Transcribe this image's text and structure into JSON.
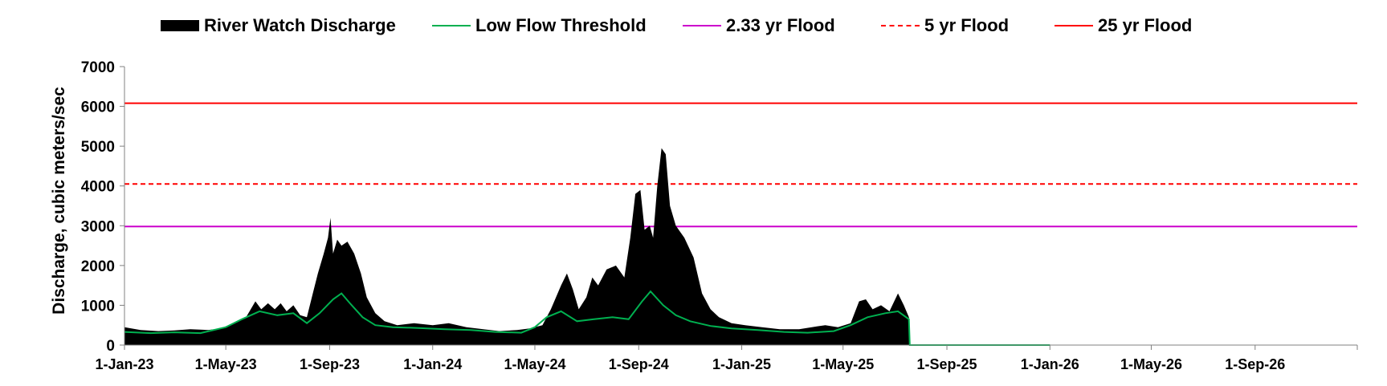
{
  "chart_data": {
    "type": "area",
    "ylabel": "Discharge, cubic meters/sec",
    "xlabel": "",
    "ylim": [
      0,
      7000
    ],
    "yticks": [
      0,
      1000,
      2000,
      3000,
      4000,
      5000,
      6000,
      7000
    ],
    "xlim": [
      "2023-01-01",
      "2026-12-31"
    ],
    "xticks": [
      {
        "date": "2023-01-01",
        "label": "1-Jan-23"
      },
      {
        "date": "2023-05-01",
        "label": "1-May-23"
      },
      {
        "date": "2023-09-01",
        "label": "1-Sep-23"
      },
      {
        "date": "2024-01-01",
        "label": "1-Jan-24"
      },
      {
        "date": "2024-05-01",
        "label": "1-May-24"
      },
      {
        "date": "2024-09-01",
        "label": "1-Sep-24"
      },
      {
        "date": "2025-01-01",
        "label": "1-Jan-25"
      },
      {
        "date": "2025-05-01",
        "label": "1-May-25"
      },
      {
        "date": "2025-09-01",
        "label": "1-Sep-25"
      },
      {
        "date": "2026-01-01",
        "label": "1-Jan-26"
      },
      {
        "date": "2026-05-01",
        "label": "1-May-26"
      },
      {
        "date": "2026-09-01",
        "label": "1-Sep-26"
      }
    ],
    "grid": false,
    "legend": "top",
    "series": [
      {
        "name": "River Watch Discharge",
        "kind": "area",
        "color": "#000000",
        "points": [
          [
            "2023-01-01",
            450
          ],
          [
            "2023-01-20",
            380
          ],
          [
            "2023-02-10",
            350
          ],
          [
            "2023-03-01",
            370
          ],
          [
            "2023-03-20",
            400
          ],
          [
            "2023-04-10",
            380
          ],
          [
            "2023-04-25",
            420
          ],
          [
            "2023-05-10",
            550
          ],
          [
            "2023-05-25",
            700
          ],
          [
            "2023-06-05",
            1100
          ],
          [
            "2023-06-12",
            900
          ],
          [
            "2023-06-20",
            1050
          ],
          [
            "2023-06-28",
            900
          ],
          [
            "2023-07-05",
            1050
          ],
          [
            "2023-07-12",
            850
          ],
          [
            "2023-07-20",
            1000
          ],
          [
            "2023-07-28",
            750
          ],
          [
            "2023-08-05",
            700
          ],
          [
            "2023-08-12",
            1300
          ],
          [
            "2023-08-18",
            1800
          ],
          [
            "2023-08-25",
            2300
          ],
          [
            "2023-08-30",
            2700
          ],
          [
            "2023-09-02",
            3200
          ],
          [
            "2023-09-05",
            2300
          ],
          [
            "2023-09-10",
            2650
          ],
          [
            "2023-09-15",
            2500
          ],
          [
            "2023-09-22",
            2600
          ],
          [
            "2023-09-30",
            2300
          ],
          [
            "2023-10-08",
            1800
          ],
          [
            "2023-10-15",
            1200
          ],
          [
            "2023-10-25",
            800
          ],
          [
            "2023-11-05",
            600
          ],
          [
            "2023-11-20",
            500
          ],
          [
            "2023-12-10",
            550
          ],
          [
            "2024-01-01",
            500
          ],
          [
            "2024-01-20",
            550
          ],
          [
            "2024-02-10",
            450
          ],
          [
            "2024-03-01",
            400
          ],
          [
            "2024-03-20",
            350
          ],
          [
            "2024-04-10",
            380
          ],
          [
            "2024-04-25",
            420
          ],
          [
            "2024-05-10",
            500
          ],
          [
            "2024-05-20",
            900
          ],
          [
            "2024-06-01",
            1500
          ],
          [
            "2024-06-08",
            1800
          ],
          [
            "2024-06-15",
            1400
          ],
          [
            "2024-06-22",
            900
          ],
          [
            "2024-07-01",
            1200
          ],
          [
            "2024-07-08",
            1700
          ],
          [
            "2024-07-15",
            1500
          ],
          [
            "2024-07-25",
            1900
          ],
          [
            "2024-08-05",
            2000
          ],
          [
            "2024-08-15",
            1700
          ],
          [
            "2024-08-22",
            2700
          ],
          [
            "2024-08-28",
            3800
          ],
          [
            "2024-09-03",
            3900
          ],
          [
            "2024-09-08",
            2900
          ],
          [
            "2024-09-14",
            3000
          ],
          [
            "2024-09-18",
            2700
          ],
          [
            "2024-09-23",
            4000
          ],
          [
            "2024-09-28",
            4950
          ],
          [
            "2024-10-03",
            4800
          ],
          [
            "2024-10-08",
            3500
          ],
          [
            "2024-10-15",
            3000
          ],
          [
            "2024-10-25",
            2700
          ],
          [
            "2024-11-05",
            2200
          ],
          [
            "2024-11-15",
            1300
          ],
          [
            "2024-11-25",
            900
          ],
          [
            "2024-12-05",
            700
          ],
          [
            "2024-12-20",
            550
          ],
          [
            "2025-01-05",
            500
          ],
          [
            "2025-01-25",
            450
          ],
          [
            "2025-02-15",
            400
          ],
          [
            "2025-03-10",
            400
          ],
          [
            "2025-03-25",
            450
          ],
          [
            "2025-04-10",
            500
          ],
          [
            "2025-04-25",
            450
          ],
          [
            "2025-05-10",
            550
          ],
          [
            "2025-05-20",
            1100
          ],
          [
            "2025-05-28",
            1150
          ],
          [
            "2025-06-05",
            900
          ],
          [
            "2025-06-15",
            1000
          ],
          [
            "2025-06-25",
            850
          ],
          [
            "2025-07-05",
            1300
          ],
          [
            "2025-07-12",
            1000
          ],
          [
            "2025-07-18",
            700
          ],
          [
            "2025-07-19",
            0
          ]
        ]
      },
      {
        "name": "Low Flow Threshold",
        "kind": "line",
        "color": "#00b050",
        "points": [
          [
            "2023-01-01",
            330
          ],
          [
            "2023-02-01",
            300
          ],
          [
            "2023-03-01",
            320
          ],
          [
            "2023-04-01",
            300
          ],
          [
            "2023-05-01",
            450
          ],
          [
            "2023-05-20",
            650
          ],
          [
            "2023-06-10",
            850
          ],
          [
            "2023-07-01",
            750
          ],
          [
            "2023-07-20",
            800
          ],
          [
            "2023-08-05",
            550
          ],
          [
            "2023-08-20",
            800
          ],
          [
            "2023-09-05",
            1150
          ],
          [
            "2023-09-15",
            1300
          ],
          [
            "2023-09-25",
            1050
          ],
          [
            "2023-10-10",
            700
          ],
          [
            "2023-10-25",
            500
          ],
          [
            "2023-11-15",
            450
          ],
          [
            "2023-12-15",
            430
          ],
          [
            "2024-01-15",
            400
          ],
          [
            "2024-02-15",
            380
          ],
          [
            "2024-03-15",
            330
          ],
          [
            "2024-04-15",
            310
          ],
          [
            "2024-05-01",
            450
          ],
          [
            "2024-05-15",
            700
          ],
          [
            "2024-06-01",
            850
          ],
          [
            "2024-06-20",
            600
          ],
          [
            "2024-07-10",
            650
          ],
          [
            "2024-08-01",
            700
          ],
          [
            "2024-08-20",
            650
          ],
          [
            "2024-09-05",
            1100
          ],
          [
            "2024-09-15",
            1350
          ],
          [
            "2024-09-30",
            1000
          ],
          [
            "2024-10-15",
            750
          ],
          [
            "2024-11-01",
            600
          ],
          [
            "2024-11-25",
            480
          ],
          [
            "2024-12-20",
            420
          ],
          [
            "2025-01-20",
            380
          ],
          [
            "2025-02-20",
            330
          ],
          [
            "2025-03-20",
            310
          ],
          [
            "2025-04-20",
            350
          ],
          [
            "2025-05-10",
            500
          ],
          [
            "2025-05-30",
            700
          ],
          [
            "2025-06-20",
            800
          ],
          [
            "2025-07-05",
            850
          ],
          [
            "2025-07-18",
            650
          ],
          [
            "2025-07-19",
            0
          ],
          [
            "2026-01-01",
            0
          ]
        ]
      },
      {
        "name": "2.33 yr Flood",
        "kind": "hline",
        "color": "#cc00cc",
        "value": 2980,
        "dash": "solid"
      },
      {
        "name": "5 yr Flood",
        "kind": "hline",
        "color": "#ff0000",
        "value": 4050,
        "dash": "dashed"
      },
      {
        "name": "25 yr Flood",
        "kind": "hline",
        "color": "#ff0000",
        "value": 6080,
        "dash": "solid"
      }
    ]
  }
}
